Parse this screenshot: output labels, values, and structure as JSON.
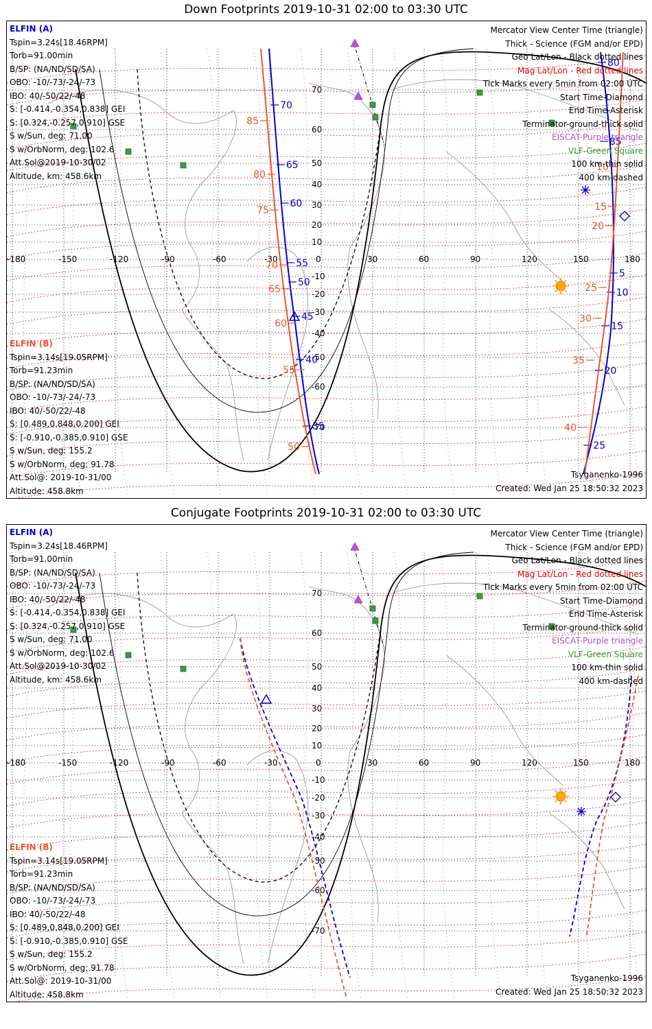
{
  "panels": [
    {
      "title": "Down Footprints 2019-10-31 02:00 to 03:30 UTC",
      "elfin_a": {
        "header": "ELFIN (A)",
        "lines": [
          "Tspin=3.24s[18.46RPM]",
          "Torb=91.00min",
          "B/SP: (NA/ND/SD/SA)",
          "OBO: -10/-73/-24/-73",
          "IBO: 40/-50/22/-48",
          "S: [-0.414,-0.354,0.838] GEI",
          "S: [0.324,-0.257,0.910] GSE",
          "S w/Sun, deg: 71.00",
          "S w/OrbNorm, deg: 102.6",
          "Att.Sol@2019-10-30/02",
          "Altitude, km: 458.6km"
        ]
      },
      "elfin_b": {
        "header": "ELFIN (B)",
        "lines": [
          "Tspin=3.14s[19.05RPM]",
          "Torb=91.23min",
          "B/SP: (NA/ND/SD/SA)",
          "OBO: -10/-73/-24/-73",
          "IBO: 40/-50/22/-48",
          "S: [0.489,0.848,0.200] GEI",
          "S: [-0.910,-0.385,0.910] GSE",
          "S w/Sun, deg: 155.2",
          "S w/OrbNorm, deg: 91.78",
          "Att.Sol@: 2019-10-31/00",
          "Altitude: 458.8km"
        ]
      },
      "legend": [
        "Mercator View Center Time (triangle)",
        "Thick - Science (FGM and/or EPD)",
        "Geo Lat/Lon - Black dotted lines",
        "Mag Lat/Lon - Red dotted lines",
        "Tick Marks every 5min from 02:00 UTC",
        "Start Time-Diamond",
        "End Time-Asterisk",
        "Terminator-ground-thick solid",
        "EISCAT-Purple triangle",
        "VLF-Green Square",
        "100 km-thin solid",
        "400 km-dashed"
      ],
      "model": "Tsyganenko-1996",
      "created": "Created: Wed Jan 25 18:50:32 2023",
      "ticks_a": [
        "70",
        "65",
        "60",
        "55",
        "50",
        "45",
        "40",
        "35",
        "80",
        "85"
      ],
      "ticks_b": [
        "85",
        "80",
        "75",
        "70",
        "65",
        "60",
        "55",
        "50",
        "10",
        "15",
        "20",
        "25",
        "30",
        "35",
        "40"
      ],
      "ticks_a_right": [
        "5",
        "10",
        "15",
        "20",
        "25"
      ]
    },
    {
      "title": "Conjugate Footprints 2019-10-31 02:00 to 03:30 UTC",
      "elfin_a": {
        "header": "ELFIN (A)",
        "lines": [
          "Tspin=3.24s[18.46RPM]",
          "Torb=91.00min",
          "B/SP: (NA/ND/SD/SA)",
          "OBO: -10/-73/-24/-73",
          "IBO: 40/-50/22/-48",
          "S: [-0.414,-0.354,0.838] GEI",
          "S: [0.324,-0.257,0.910] GSE",
          "S w/Sun, deg: 71.00",
          "S w/OrbNorm, deg: 102.6",
          "Att.Sol@2019-10-30/02",
          "Altitude, km: 458.6km"
        ]
      },
      "elfin_b": {
        "header": "ELFIN (B)",
        "lines": [
          "Tspin=3.14s[19.05RPM]",
          "Torb=91.23min",
          "B/SP: (NA/ND/SD/SA)",
          "OBO: -10/-73/-24/-73",
          "IBO: 40/-50/22/-48",
          "S: [0.489,0.848,0.200] GEI",
          "S: [-0.910,-0.385,0.910] GSE",
          "S w/Sun, deg: 155.2",
          "S w/OrbNorm, deg: 91.78",
          "Att.Sol@: 2019-10-31/00",
          "Altitude: 458.8km"
        ]
      },
      "legend": [
        "Mercator View Center Time (triangle)",
        "Thick - Science (FGM and/or EPD)",
        "Geo Lat/Lon - Black dotted lines",
        "Mag Lat/Lon - Red dotted lines",
        "Tick Marks every 5min from 02:00 UTC",
        "Start Time-Diamond",
        "End Time-Asterisk",
        "Terminator-ground-thick solid",
        "EISCAT-Purple triangle",
        "VLF-Green Square",
        "100 km-thin solid",
        "400 km-dashed"
      ],
      "model": "Tsyganenko-1996",
      "created": "Created: Wed Jan 25 18:50:32 2023"
    }
  ],
  "lon_labels": [
    "-180",
    "-150",
    "-120",
    "-90",
    "-60",
    "-30",
    "0",
    "30",
    "60",
    "90",
    "120",
    "150",
    "180"
  ],
  "lat_labels": [
    "70",
    "60",
    "50",
    "40",
    "30",
    "20",
    "10",
    "-10",
    "-20",
    "-30",
    "-40",
    "-50",
    "-60",
    "-70"
  ],
  "colors": {
    "elfin_a": "#0000cc",
    "elfin_b": "#e8552f",
    "mag_grid": "#e00000",
    "geo_grid": "#000000",
    "eiscat": "#c050e0",
    "vlf": "#3a9a4a",
    "sun": "#ffa500"
  },
  "icons": {
    "start": "diamond-icon",
    "end": "asterisk-icon",
    "center": "triangle-icon",
    "sun": "sun-icon",
    "vlf": "square-icon",
    "eiscat": "purple-triangle-icon"
  }
}
